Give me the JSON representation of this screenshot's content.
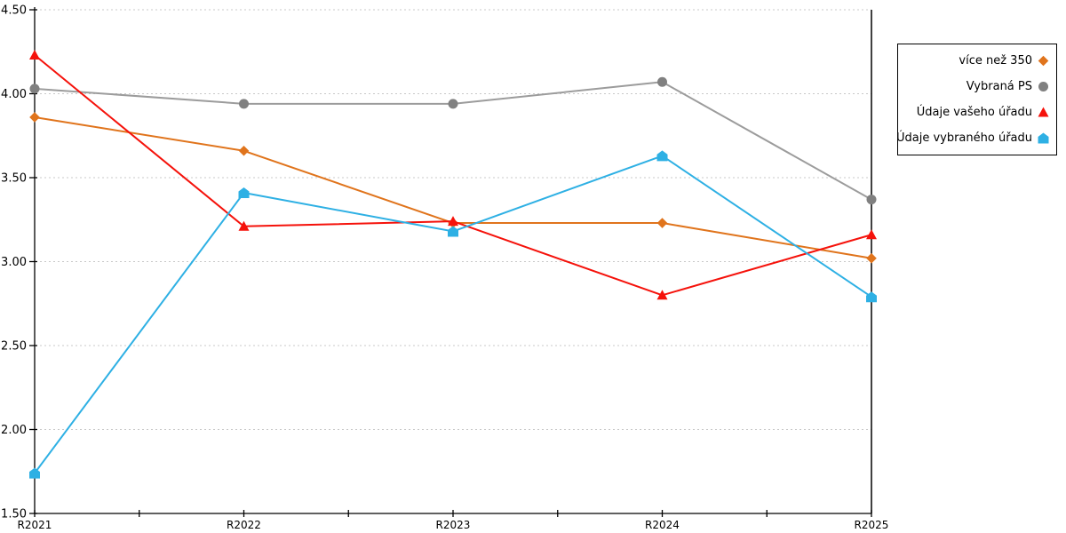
{
  "page": {
    "background_color": "#ffffff",
    "axis_color": "#000000",
    "grid_color": "#c8c8c8",
    "text_color": "#000000"
  },
  "chart_data": {
    "type": "line",
    "title": "",
    "xlabel": "",
    "ylabel": "",
    "categories": [
      "R2021",
      "R2022",
      "R2023",
      "R2024",
      "R2025"
    ],
    "series": [
      {
        "name": "více než 350",
        "color": "#e0741c",
        "marker_color": "#e0741c",
        "marker": "diamond",
        "values": [
          3.86,
          3.66,
          3.23,
          3.23,
          3.02
        ]
      },
      {
        "name": "Vybraná PS",
        "color": "#9c9c9c",
        "marker_color": "#808080",
        "marker": "circle",
        "values": [
          4.03,
          3.94,
          3.94,
          4.07,
          3.37
        ]
      },
      {
        "name": "Údaje vašeho úřadu",
        "color": "#f5120b",
        "marker_color": "#f5120b",
        "marker": "triangle",
        "values": [
          4.23,
          3.21,
          3.24,
          2.8,
          3.16
        ]
      },
      {
        "name": "Údaje vybraného úřadu",
        "color": "#2eb0e4",
        "marker_color": "#2eb0e4",
        "marker": "pentagon",
        "values": [
          1.74,
          3.41,
          3.18,
          3.63,
          2.79
        ]
      }
    ],
    "ylim": [
      1.5,
      4.5
    ],
    "y_tick_step": 0.5,
    "y_tick_labels": [
      "1.50",
      "2.00",
      "2.50",
      "3.00",
      "3.50",
      "4.00",
      "4.50"
    ],
    "grid": "horizontal dotted",
    "legend_position": "outside top-right"
  }
}
